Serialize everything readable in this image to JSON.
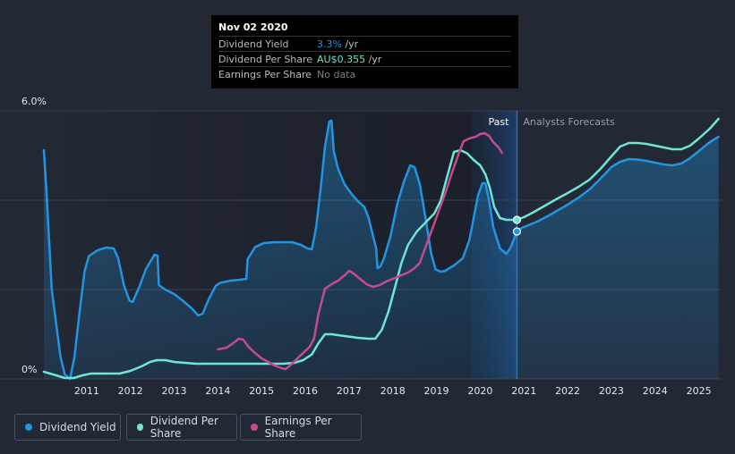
{
  "tooltip": {
    "date": "Nov 02 2020",
    "rows": [
      {
        "label": "Dividend Yield",
        "value": "3.3%",
        "unit": " /yr",
        "color": "#2394df"
      },
      {
        "label": "Dividend Per Share",
        "value": "AU$0.355",
        "unit": " /yr",
        "color": "#6ce7d6"
      },
      {
        "label": "Earnings Per Share",
        "value": "No data",
        "unit": "",
        "color": "#7a7f88"
      }
    ]
  },
  "chart_data": {
    "type": "line",
    "y_axis": {
      "min": 0,
      "max": 6,
      "top_label": "6.0%",
      "bottom_label": "0%"
    },
    "x_axis": {
      "min": 2010,
      "max": 2025.5,
      "ticks": [
        "2011",
        "2012",
        "2013",
        "2014",
        "2015",
        "2016",
        "2017",
        "2018",
        "2019",
        "2020",
        "2021",
        "2022",
        "2023",
        "2024",
        "2025"
      ]
    },
    "past_label": "Past",
    "forecast_label": "Analysts Forecasts",
    "divider_x": 2020.84,
    "past_band_start": 2019.8,
    "legend": [
      {
        "label": "Dividend Yield",
        "color": "#2394df"
      },
      {
        "label": "Dividend Per Share",
        "color": "#6ce7d6"
      },
      {
        "label": "Earnings Per Share",
        "color": "#c54b8f"
      }
    ],
    "series": [
      {
        "name": "Dividend Yield",
        "color": "#2394df",
        "fill": true,
        "points": [
          [
            2010.02,
            5.12
          ],
          [
            2010.08,
            4.2
          ],
          [
            2010.2,
            2.0
          ],
          [
            2010.4,
            0.5
          ],
          [
            2010.5,
            0.1
          ],
          [
            2010.62,
            0.0
          ],
          [
            2010.72,
            0.5
          ],
          [
            2010.85,
            1.6
          ],
          [
            2010.95,
            2.4
          ],
          [
            2011.05,
            2.75
          ],
          [
            2011.25,
            2.88
          ],
          [
            2011.45,
            2.94
          ],
          [
            2011.62,
            2.92
          ],
          [
            2011.72,
            2.7
          ],
          [
            2011.85,
            2.1
          ],
          [
            2011.98,
            1.75
          ],
          [
            2012.05,
            1.72
          ],
          [
            2012.2,
            2.05
          ],
          [
            2012.35,
            2.45
          ],
          [
            2012.55,
            2.78
          ],
          [
            2012.62,
            2.76
          ],
          [
            2012.65,
            2.1
          ],
          [
            2012.8,
            2.0
          ],
          [
            2013.0,
            1.9
          ],
          [
            2013.2,
            1.75
          ],
          [
            2013.4,
            1.58
          ],
          [
            2013.55,
            1.42
          ],
          [
            2013.65,
            1.46
          ],
          [
            2013.8,
            1.8
          ],
          [
            2013.95,
            2.08
          ],
          [
            2014.05,
            2.15
          ],
          [
            2014.3,
            2.2
          ],
          [
            2014.5,
            2.22
          ],
          [
            2014.65,
            2.24
          ],
          [
            2014.68,
            2.68
          ],
          [
            2014.85,
            2.95
          ],
          [
            2015.05,
            3.04
          ],
          [
            2015.3,
            3.06
          ],
          [
            2015.55,
            3.06
          ],
          [
            2015.7,
            3.06
          ],
          [
            2015.9,
            3.0
          ],
          [
            2016.05,
            2.92
          ],
          [
            2016.15,
            2.9
          ],
          [
            2016.25,
            3.4
          ],
          [
            2016.35,
            4.25
          ],
          [
            2016.45,
            5.2
          ],
          [
            2016.55,
            5.76
          ],
          [
            2016.6,
            5.78
          ],
          [
            2016.65,
            5.1
          ],
          [
            2016.75,
            4.7
          ],
          [
            2016.9,
            4.35
          ],
          [
            2017.05,
            4.15
          ],
          [
            2017.2,
            3.98
          ],
          [
            2017.35,
            3.85
          ],
          [
            2017.45,
            3.6
          ],
          [
            2017.55,
            3.2
          ],
          [
            2017.62,
            2.92
          ],
          [
            2017.65,
            2.48
          ],
          [
            2017.72,
            2.52
          ],
          [
            2017.8,
            2.7
          ],
          [
            2017.95,
            3.2
          ],
          [
            2018.1,
            3.9
          ],
          [
            2018.25,
            4.4
          ],
          [
            2018.4,
            4.78
          ],
          [
            2018.5,
            4.74
          ],
          [
            2018.62,
            4.35
          ],
          [
            2018.75,
            3.6
          ],
          [
            2018.88,
            2.8
          ],
          [
            2018.98,
            2.45
          ],
          [
            2019.1,
            2.4
          ],
          [
            2019.2,
            2.42
          ],
          [
            2019.4,
            2.54
          ],
          [
            2019.6,
            2.7
          ],
          [
            2019.75,
            3.1
          ],
          [
            2019.85,
            3.6
          ],
          [
            2019.95,
            4.1
          ],
          [
            2020.05,
            4.38
          ],
          [
            2020.12,
            4.38
          ],
          [
            2020.2,
            4.0
          ],
          [
            2020.3,
            3.4
          ],
          [
            2020.45,
            2.92
          ],
          [
            2020.6,
            2.8
          ],
          [
            2020.7,
            2.95
          ],
          [
            2020.84,
            3.3
          ],
          [
            2020.95,
            3.38
          ],
          [
            2021.1,
            3.44
          ],
          [
            2021.3,
            3.52
          ],
          [
            2021.5,
            3.62
          ],
          [
            2021.75,
            3.76
          ],
          [
            2022.0,
            3.9
          ],
          [
            2022.25,
            4.06
          ],
          [
            2022.5,
            4.24
          ],
          [
            2022.75,
            4.48
          ],
          [
            2023.0,
            4.74
          ],
          [
            2023.2,
            4.86
          ],
          [
            2023.4,
            4.92
          ],
          [
            2023.6,
            4.91
          ],
          [
            2023.8,
            4.88
          ],
          [
            2024.0,
            4.84
          ],
          [
            2024.2,
            4.8
          ],
          [
            2024.4,
            4.78
          ],
          [
            2024.6,
            4.82
          ],
          [
            2024.8,
            4.94
          ],
          [
            2025.0,
            5.1
          ],
          [
            2025.25,
            5.3
          ],
          [
            2025.45,
            5.42
          ]
        ]
      },
      {
        "name": "Dividend Per Share",
        "color": "#6ce7d6",
        "fill": false,
        "points": [
          [
            2010.02,
            0.16
          ],
          [
            2010.3,
            0.08
          ],
          [
            2010.5,
            0.02
          ],
          [
            2010.7,
            0.02
          ],
          [
            2010.9,
            0.08
          ],
          [
            2011.1,
            0.12
          ],
          [
            2011.5,
            0.12
          ],
          [
            2011.75,
            0.12
          ],
          [
            2012.0,
            0.18
          ],
          [
            2012.25,
            0.28
          ],
          [
            2012.45,
            0.38
          ],
          [
            2012.6,
            0.42
          ],
          [
            2012.8,
            0.42
          ],
          [
            2013.0,
            0.38
          ],
          [
            2013.25,
            0.36
          ],
          [
            2013.5,
            0.34
          ],
          [
            2014.0,
            0.34
          ],
          [
            2014.5,
            0.34
          ],
          [
            2015.0,
            0.34
          ],
          [
            2015.5,
            0.34
          ],
          [
            2015.75,
            0.36
          ],
          [
            2015.95,
            0.42
          ],
          [
            2016.15,
            0.55
          ],
          [
            2016.3,
            0.8
          ],
          [
            2016.45,
            1.0
          ],
          [
            2016.6,
            1.0
          ],
          [
            2016.9,
            0.96
          ],
          [
            2017.2,
            0.92
          ],
          [
            2017.45,
            0.9
          ],
          [
            2017.6,
            0.9
          ],
          [
            2017.75,
            1.1
          ],
          [
            2017.9,
            1.5
          ],
          [
            2018.05,
            2.05
          ],
          [
            2018.2,
            2.6
          ],
          [
            2018.35,
            3.0
          ],
          [
            2018.55,
            3.3
          ],
          [
            2018.75,
            3.5
          ],
          [
            2018.95,
            3.7
          ],
          [
            2019.1,
            4.0
          ],
          [
            2019.25,
            4.55
          ],
          [
            2019.4,
            5.08
          ],
          [
            2019.55,
            5.12
          ],
          [
            2019.7,
            5.05
          ],
          [
            2019.85,
            4.9
          ],
          [
            2020.0,
            4.78
          ],
          [
            2020.12,
            4.58
          ],
          [
            2020.22,
            4.28
          ],
          [
            2020.32,
            3.85
          ],
          [
            2020.45,
            3.6
          ],
          [
            2020.6,
            3.56
          ],
          [
            2020.7,
            3.56
          ],
          [
            2020.84,
            3.56
          ],
          [
            2021.0,
            3.62
          ],
          [
            2021.2,
            3.72
          ],
          [
            2021.45,
            3.86
          ],
          [
            2021.7,
            4.0
          ],
          [
            2022.0,
            4.16
          ],
          [
            2022.25,
            4.3
          ],
          [
            2022.5,
            4.46
          ],
          [
            2022.75,
            4.7
          ],
          [
            2023.0,
            4.98
          ],
          [
            2023.2,
            5.2
          ],
          [
            2023.4,
            5.28
          ],
          [
            2023.6,
            5.28
          ],
          [
            2023.8,
            5.26
          ],
          [
            2024.0,
            5.22
          ],
          [
            2024.2,
            5.18
          ],
          [
            2024.4,
            5.14
          ],
          [
            2024.6,
            5.14
          ],
          [
            2024.8,
            5.22
          ],
          [
            2025.0,
            5.38
          ],
          [
            2025.25,
            5.6
          ],
          [
            2025.45,
            5.82
          ]
        ]
      },
      {
        "name": "Earnings Per Share",
        "color": "#c54b8f",
        "fill": false,
        "points": [
          [
            2014.0,
            0.66
          ],
          [
            2014.2,
            0.7
          ],
          [
            2014.35,
            0.8
          ],
          [
            2014.48,
            0.9
          ],
          [
            2014.58,
            0.88
          ],
          [
            2014.7,
            0.72
          ],
          [
            2014.85,
            0.58
          ],
          [
            2015.0,
            0.46
          ],
          [
            2015.15,
            0.38
          ],
          [
            2015.3,
            0.3
          ],
          [
            2015.45,
            0.24
          ],
          [
            2015.55,
            0.22
          ],
          [
            2015.65,
            0.3
          ],
          [
            2015.8,
            0.44
          ],
          [
            2015.95,
            0.58
          ],
          [
            2016.1,
            0.72
          ],
          [
            2016.2,
            0.9
          ],
          [
            2016.3,
            1.45
          ],
          [
            2016.45,
            2.02
          ],
          [
            2016.6,
            2.12
          ],
          [
            2016.75,
            2.2
          ],
          [
            2016.9,
            2.32
          ],
          [
            2017.0,
            2.42
          ],
          [
            2017.1,
            2.36
          ],
          [
            2017.25,
            2.24
          ],
          [
            2017.4,
            2.12
          ],
          [
            2017.55,
            2.06
          ],
          [
            2017.7,
            2.1
          ],
          [
            2017.85,
            2.18
          ],
          [
            2018.0,
            2.24
          ],
          [
            2018.2,
            2.32
          ],
          [
            2018.35,
            2.38
          ],
          [
            2018.5,
            2.48
          ],
          [
            2018.62,
            2.6
          ],
          [
            2018.75,
            2.95
          ],
          [
            2018.9,
            3.35
          ],
          [
            2019.05,
            3.75
          ],
          [
            2019.2,
            4.15
          ],
          [
            2019.35,
            4.6
          ],
          [
            2019.5,
            5.02
          ],
          [
            2019.62,
            5.32
          ],
          [
            2019.75,
            5.38
          ],
          [
            2019.9,
            5.42
          ],
          [
            2020.0,
            5.48
          ],
          [
            2020.1,
            5.5
          ],
          [
            2020.2,
            5.44
          ],
          [
            2020.3,
            5.3
          ],
          [
            2020.42,
            5.18
          ],
          [
            2020.5,
            5.06
          ]
        ]
      }
    ],
    "markers": [
      {
        "series": "Dividend Yield",
        "x": 2020.84,
        "y": 3.3
      },
      {
        "series": "Dividend Per Share",
        "x": 2020.84,
        "y": 3.56
      }
    ]
  }
}
